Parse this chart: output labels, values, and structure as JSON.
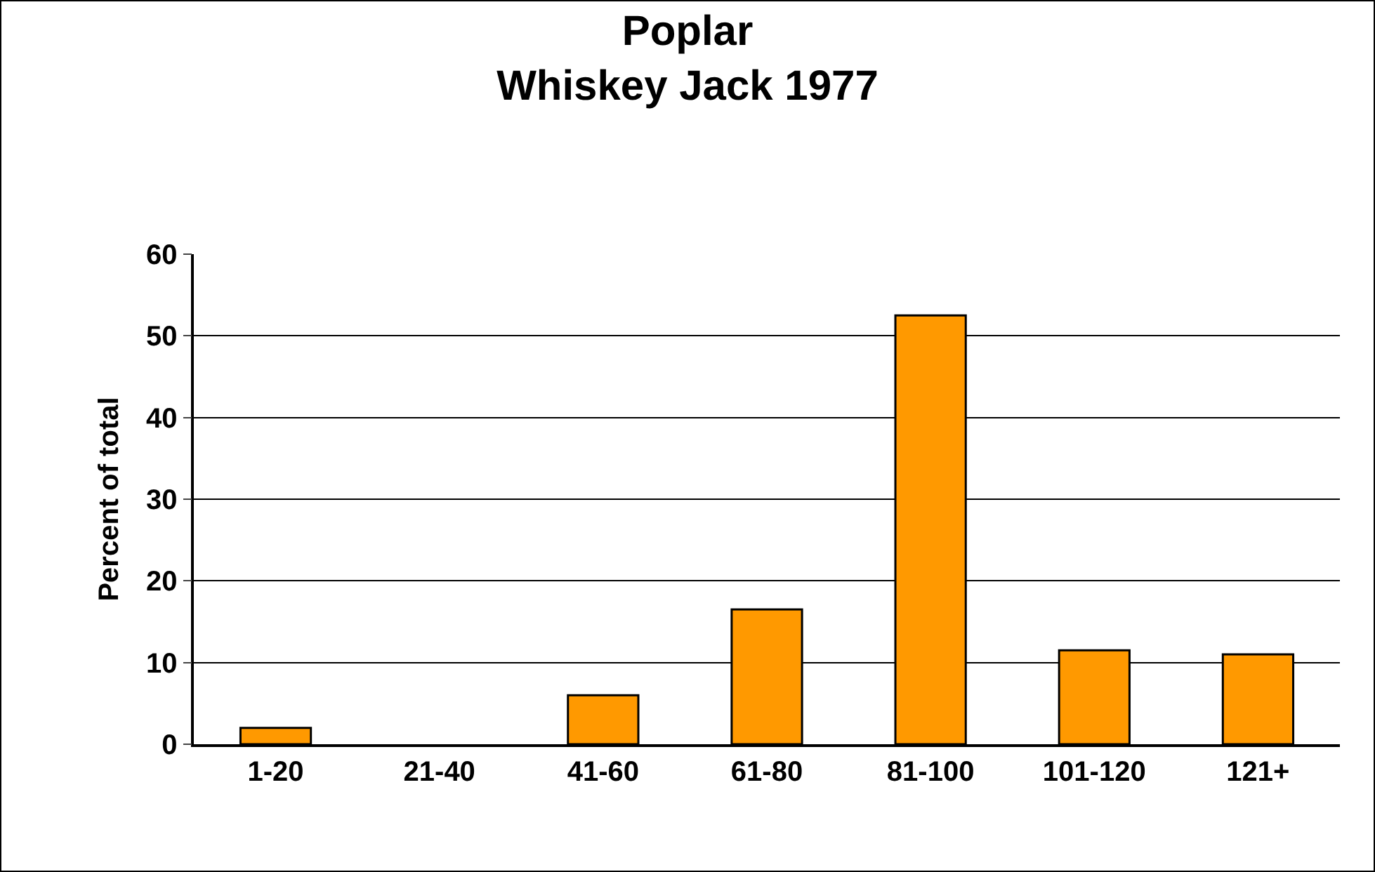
{
  "chart_data": {
    "type": "bar",
    "title": "Poplar\nWhiskey Jack 1977",
    "ylabel": "Percent of total",
    "categories": [
      "1-20",
      "21-40",
      "41-60",
      "61-80",
      "81-100",
      "101-120",
      "121+"
    ],
    "values": [
      2,
      0,
      6,
      16.5,
      52.5,
      11.5,
      11
    ],
    "color": "#ff9900",
    "ylim": [
      0,
      60
    ],
    "yticks": [
      0,
      10,
      20,
      30,
      40,
      50,
      60
    ],
    "grid": "y",
    "legend": false
  }
}
